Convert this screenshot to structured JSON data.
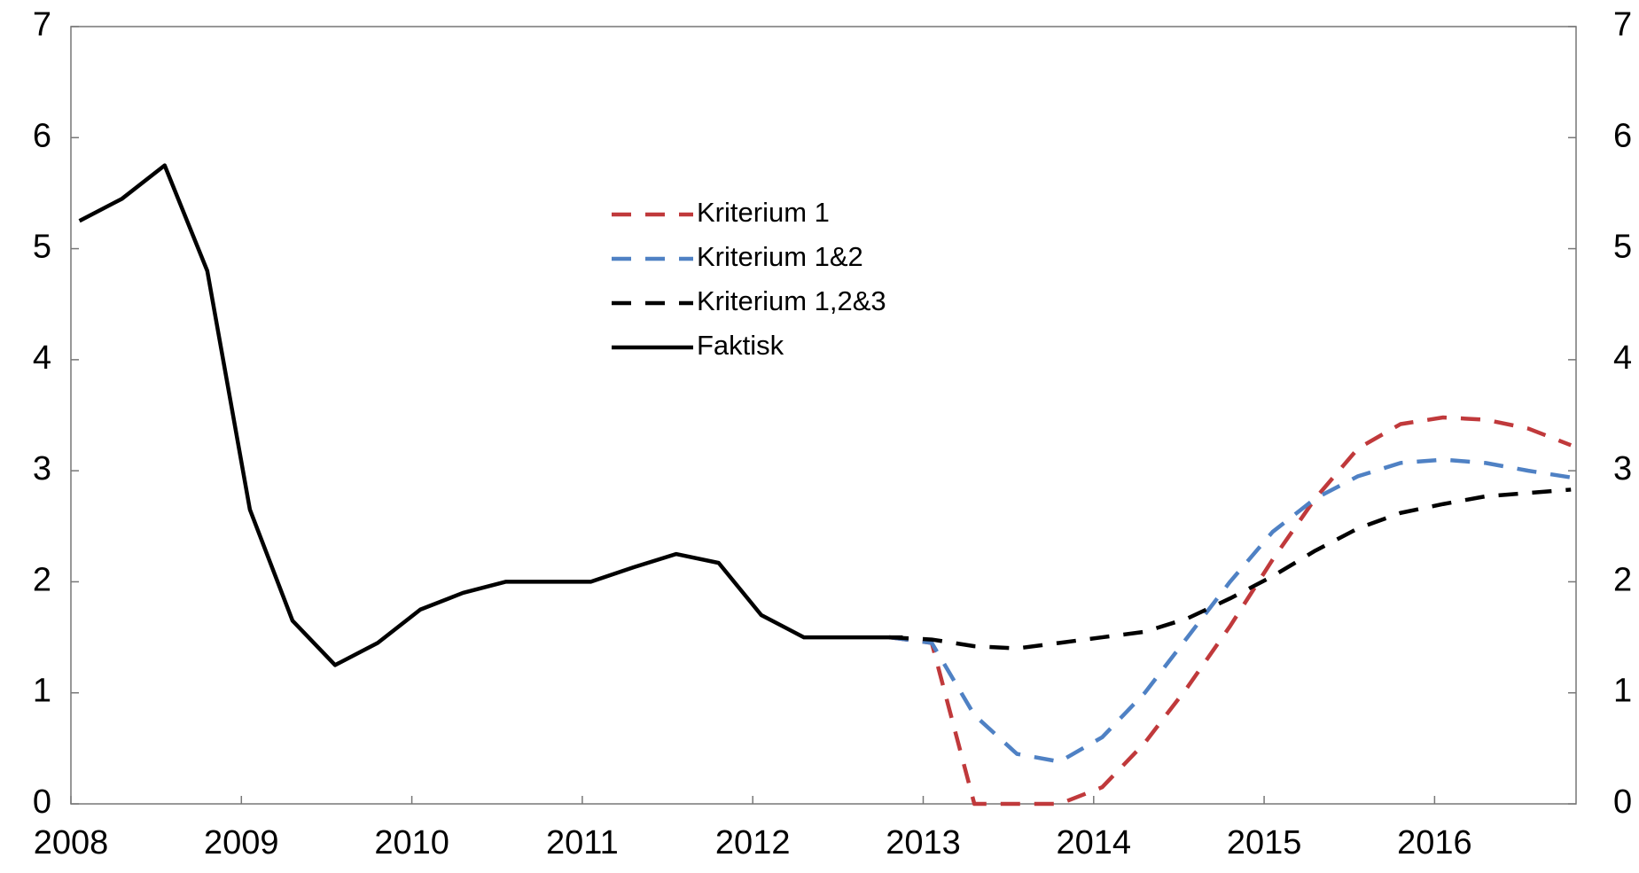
{
  "chart_data": {
    "type": "line",
    "xlim": [
      2008,
      2016.83
    ],
    "xticks": [
      2008,
      2009,
      2010,
      2011,
      2012,
      2013,
      2014,
      2015,
      2016
    ],
    "ylim": [
      0,
      7
    ],
    "yticks": [
      0,
      1,
      2,
      3,
      4,
      5,
      6,
      7
    ],
    "y2lim": [
      0,
      7
    ],
    "y2ticks": [
      0,
      1,
      2,
      3,
      4,
      5,
      6,
      7
    ],
    "legend": "upper center",
    "series": [
      {
        "name": "Kriterium 1",
        "color": "#c0393b",
        "dash": true,
        "x": [
          2012.8,
          2013.05,
          2013.3,
          2013.55,
          2013.8,
          2014.05,
          2014.3,
          2014.55,
          2014.8,
          2015.05,
          2015.3,
          2015.55,
          2015.8,
          2016.05,
          2016.3,
          2016.55,
          2016.8
        ],
        "values": [
          1.5,
          1.45,
          0,
          0,
          0,
          0.15,
          0.55,
          1.05,
          1.6,
          2.2,
          2.75,
          3.2,
          3.42,
          3.48,
          3.46,
          3.38,
          3.23
        ]
      },
      {
        "name": "Kriterium 1&2",
        "color": "#4f81c4",
        "dash": true,
        "x": [
          2012.8,
          2013.05,
          2013.3,
          2013.55,
          2013.8,
          2014.05,
          2014.3,
          2014.55,
          2014.8,
          2015.05,
          2015.3,
          2015.55,
          2015.8,
          2016.05,
          2016.3,
          2016.55,
          2016.8
        ],
        "values": [
          1.5,
          1.45,
          0.8,
          0.45,
          0.38,
          0.6,
          1.0,
          1.5,
          2.0,
          2.45,
          2.75,
          2.95,
          3.07,
          3.1,
          3.07,
          3.0,
          2.94
        ]
      },
      {
        "name": "Kriterium 1,2&3",
        "color": "#000000",
        "dash": true,
        "x": [
          2012.8,
          2013.05,
          2013.3,
          2013.55,
          2013.8,
          2014.05,
          2014.3,
          2014.55,
          2014.8,
          2015.05,
          2015.3,
          2015.55,
          2015.8,
          2016.05,
          2016.3,
          2016.55,
          2016.8
        ],
        "values": [
          1.5,
          1.48,
          1.42,
          1.4,
          1.45,
          1.5,
          1.55,
          1.67,
          1.85,
          2.05,
          2.28,
          2.48,
          2.62,
          2.7,
          2.77,
          2.8,
          2.83
        ]
      },
      {
        "name": "Faktisk",
        "color": "#000000",
        "dash": false,
        "x": [
          2008.05,
          2008.3,
          2008.55,
          2008.8,
          2009.05,
          2009.3,
          2009.55,
          2009.8,
          2010.05,
          2010.3,
          2010.55,
          2010.8,
          2011.05,
          2011.3,
          2011.55,
          2011.8,
          2012.05,
          2012.3,
          2012.55,
          2012.8,
          2012.88
        ],
        "values": [
          5.25,
          5.45,
          5.75,
          4.8,
          2.65,
          1.65,
          1.25,
          1.45,
          1.75,
          1.9,
          2.0,
          2.0,
          2.0,
          2.13,
          2.25,
          2.17,
          1.7,
          1.5,
          1.5,
          1.5,
          1.5
        ]
      }
    ]
  }
}
